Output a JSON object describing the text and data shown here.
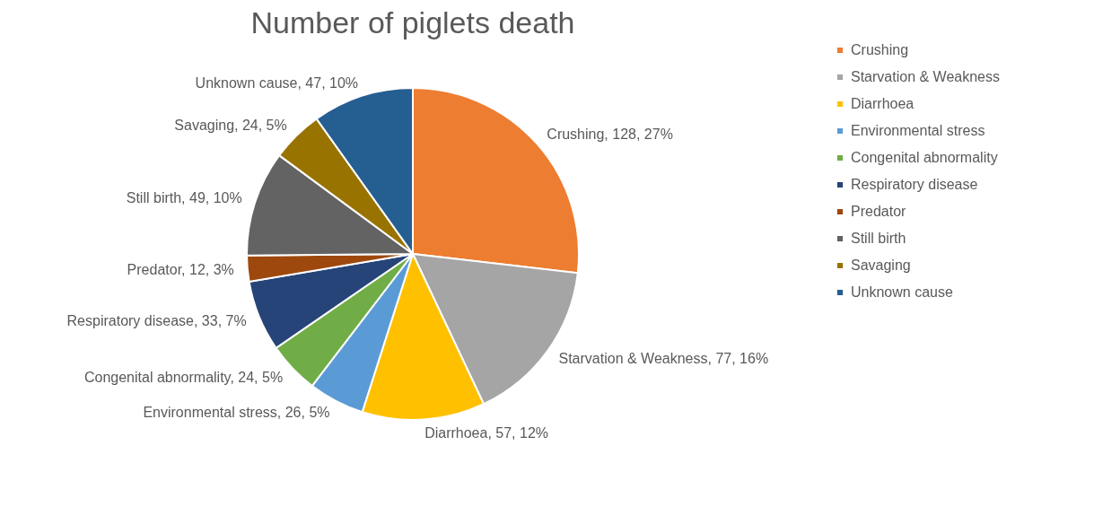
{
  "chart_data": {
    "type": "pie",
    "title": "Number of piglets death",
    "categories": [
      "Crushing",
      "Starvation & Weakness",
      "Diarrhoea",
      "Environmental stress",
      "Congenital abnormality",
      "Respiratory disease",
      "Predator",
      "Still birth",
      "Savaging",
      "Unknown cause"
    ],
    "values": [
      128,
      77,
      57,
      26,
      24,
      33,
      12,
      49,
      24,
      47
    ],
    "colors": [
      "#ed7d31",
      "#a5a5a5",
      "#ffc000",
      "#5b9bd5",
      "#70ad47",
      "#264478",
      "#9e480e",
      "#636363",
      "#997300",
      "#255e91"
    ],
    "value_labels": [
      "Crushing, 128, 27%",
      "Starvation & Weakness, 77, 16%",
      "Diarrhoea, 57, 12%",
      "Environmental stress, 26, 5%",
      "Congenital abnormality, 24, 5%",
      "Respiratory disease, 33, 7%",
      "Predator, 12, 3%",
      "Still birth, 49, 10%",
      "Savaging, 24, 5%",
      "Unknown cause, 47, 10%"
    ],
    "legend": "right"
  }
}
